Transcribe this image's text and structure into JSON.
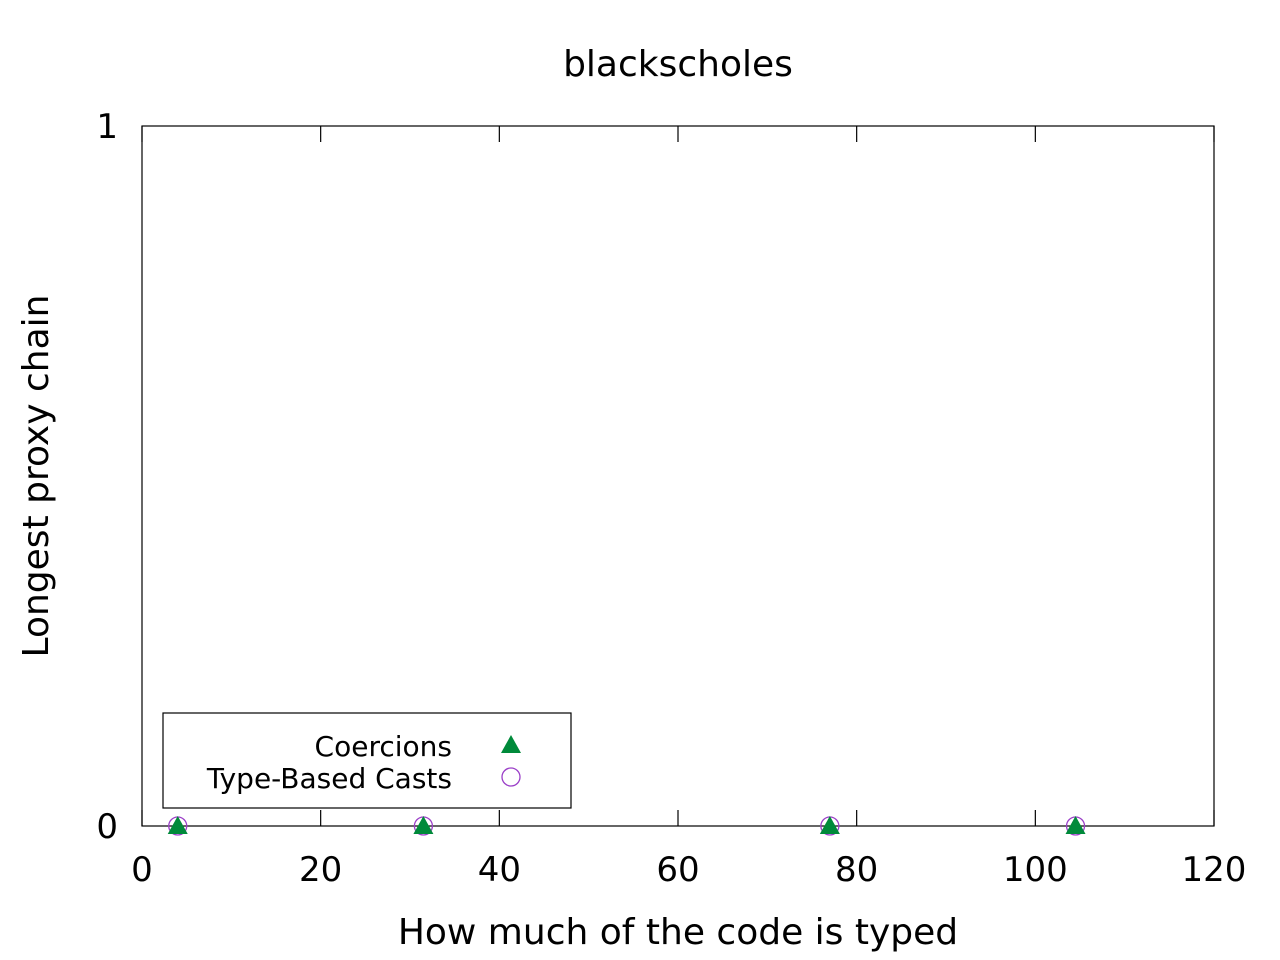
{
  "chart_data": {
    "type": "scatter",
    "title": "blackscholes",
    "xlabel": "How much of the code is typed",
    "ylabel": "Longest proxy chain",
    "xlim": [
      0,
      120
    ],
    "ylim": [
      0,
      1
    ],
    "x_ticks": [
      "0",
      "20",
      "40",
      "60",
      "80",
      "100",
      "120"
    ],
    "y_ticks": [
      "0",
      "1"
    ],
    "grid": false,
    "legend_position": "bottom-left",
    "series": [
      {
        "name": "Coercions",
        "marker": "filled-triangle",
        "color": "#008a3a",
        "points": [
          [
            4,
            0
          ],
          [
            31.5,
            0
          ],
          [
            77,
            0
          ],
          [
            104.5,
            0
          ]
        ]
      },
      {
        "name": "Type-Based Casts",
        "marker": "open-circle",
        "color": "#9b40c8",
        "points": [
          [
            4,
            0
          ],
          [
            31.5,
            0
          ],
          [
            77,
            0
          ],
          [
            104.5,
            0
          ]
        ]
      }
    ]
  }
}
